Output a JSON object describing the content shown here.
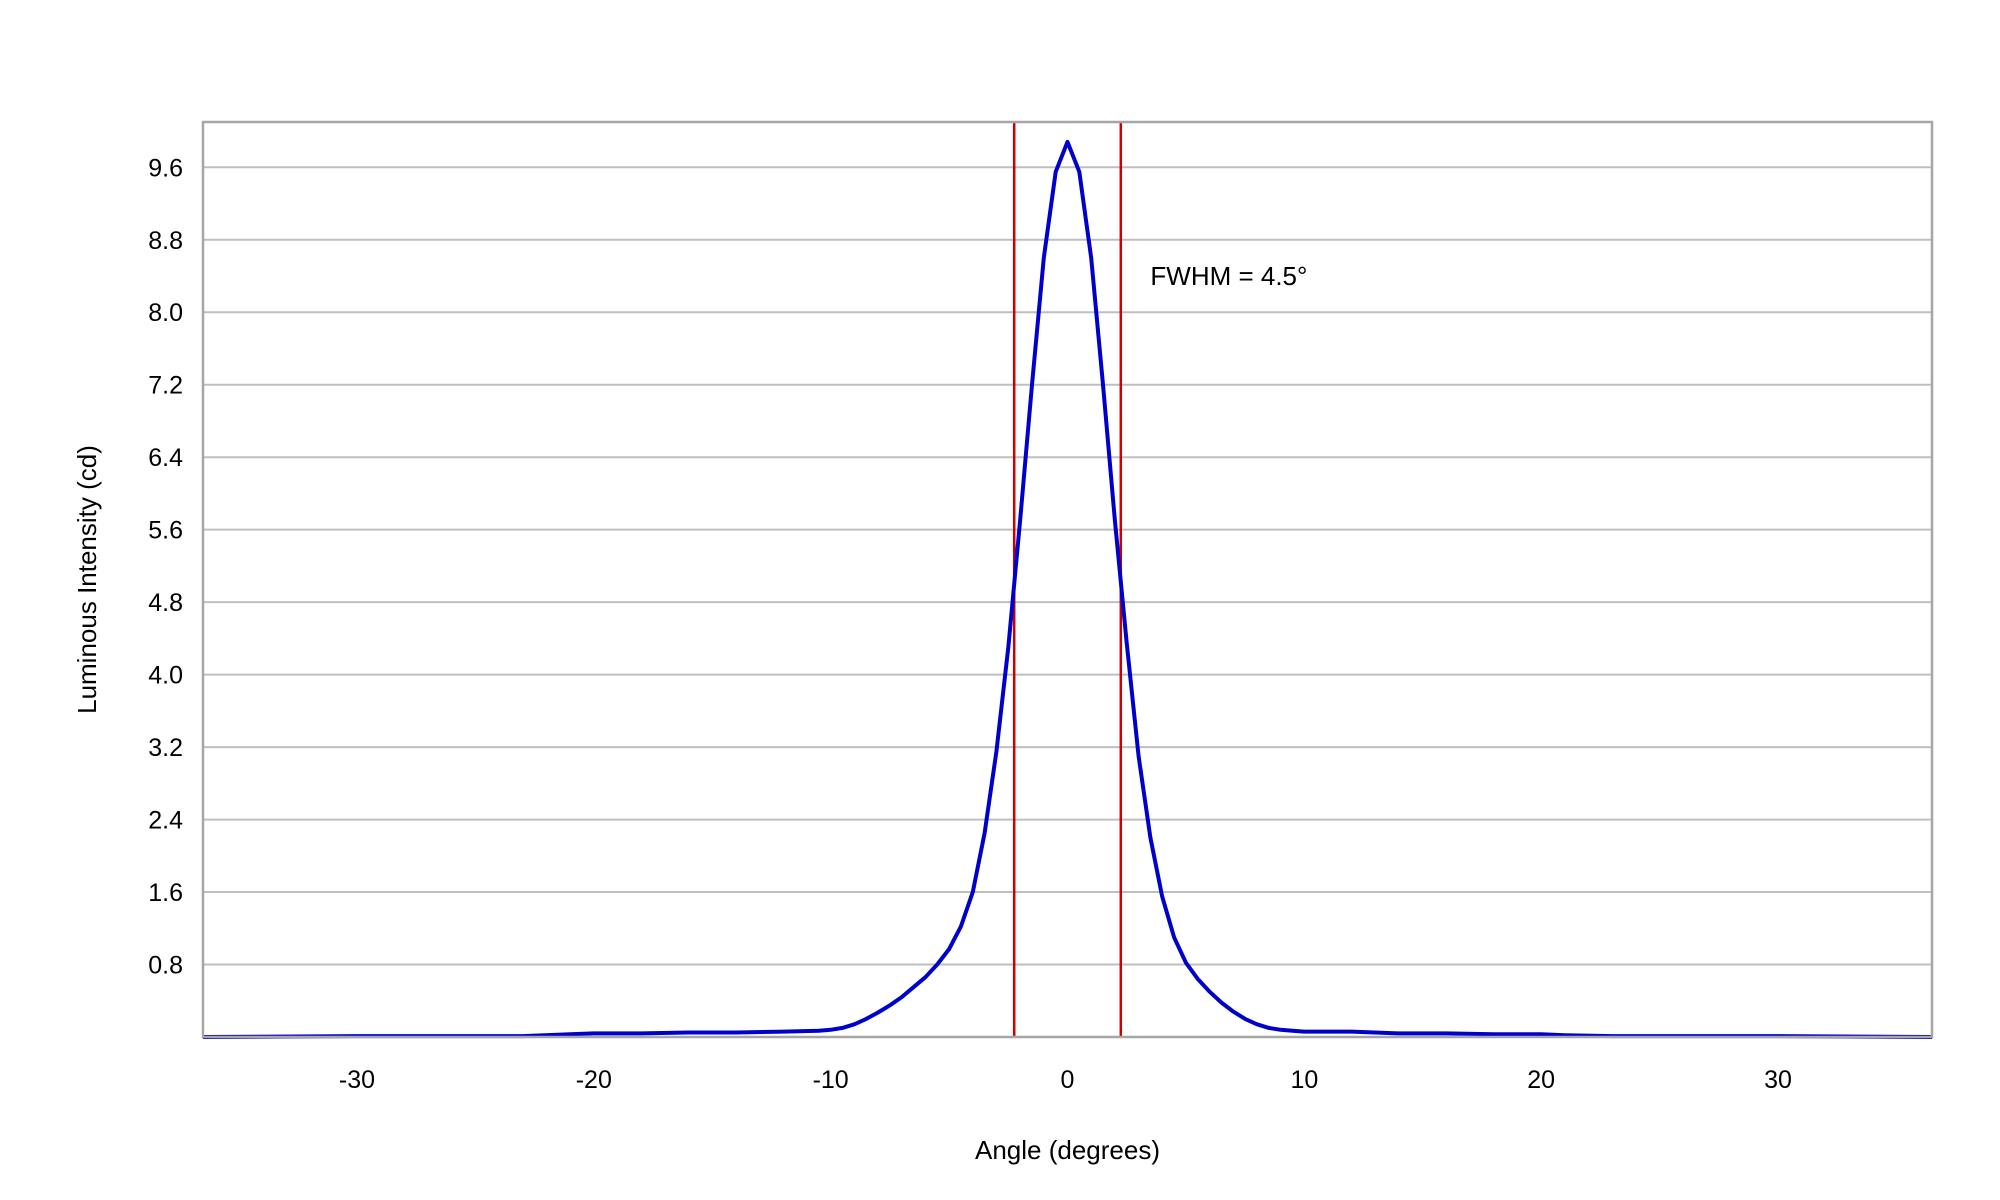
{
  "chart_data": {
    "type": "line",
    "title": "",
    "xlabel": "Angle (degrees)",
    "ylabel": "Luminous Intensity (cd)",
    "xlim": [
      -36.5,
      36.5
    ],
    "ylim": [
      0,
      10.1
    ],
    "x_ticks": [
      -30,
      -20,
      -10,
      0,
      10,
      20,
      30
    ],
    "y_ticks": [
      0.8,
      1.6,
      2.4,
      3.2,
      4.0,
      4.8,
      5.6,
      6.4,
      7.2,
      8.0,
      8.8,
      9.6
    ],
    "y_tick_labels": [
      "0.8",
      "1.6",
      "2.4",
      "3.2",
      "4.0",
      "4.8",
      "5.6",
      "6.4",
      "7.2",
      "8.0",
      "8.8",
      "9.6"
    ],
    "grid": "horizontal",
    "legend": "none",
    "colors": {
      "series": "#0000cc",
      "markers": "#cc0000",
      "grid": "#bfbfbf",
      "frame": "#a6a6a6"
    },
    "series": [
      {
        "x": [
          -36.5,
          -30,
          -25,
          -23,
          -21,
          -20,
          -18,
          -16,
          -14,
          -12,
          -10.5,
          -10,
          -9.5,
          -9,
          -8.5,
          -8,
          -7.5,
          -7,
          -6.5,
          -6,
          -5.5,
          -5,
          -4.5,
          -4,
          -3.5,
          -3,
          -2.5,
          -2,
          -1.5,
          -1,
          -0.5,
          0,
          0.5,
          1,
          1.5,
          2,
          2.5,
          3,
          3.5,
          4,
          4.5,
          5,
          5.5,
          6,
          6.5,
          7,
          7.5,
          8,
          8.5,
          9,
          9.5,
          10,
          12,
          14,
          16,
          18,
          20,
          21,
          23,
          25,
          30,
          36.5
        ],
        "y": [
          0.0,
          0.01,
          0.01,
          0.01,
          0.03,
          0.04,
          0.04,
          0.05,
          0.05,
          0.06,
          0.07,
          0.08,
          0.1,
          0.14,
          0.2,
          0.27,
          0.35,
          0.44,
          0.55,
          0.66,
          0.8,
          0.97,
          1.22,
          1.6,
          2.25,
          3.15,
          4.3,
          5.7,
          7.2,
          8.6,
          9.55,
          9.88,
          9.55,
          8.6,
          7.2,
          5.7,
          4.35,
          3.1,
          2.2,
          1.55,
          1.1,
          0.82,
          0.64,
          0.5,
          0.38,
          0.28,
          0.2,
          0.14,
          0.1,
          0.08,
          0.07,
          0.06,
          0.06,
          0.04,
          0.04,
          0.03,
          0.03,
          0.02,
          0.01,
          0.01,
          0.01,
          0.0
        ]
      }
    ],
    "reference_lines": [
      -2.25,
      2.25
    ],
    "annotations": [
      {
        "text": "FWHM = 4.5°",
        "x": 3.5,
        "y": 8.3
      }
    ]
  }
}
